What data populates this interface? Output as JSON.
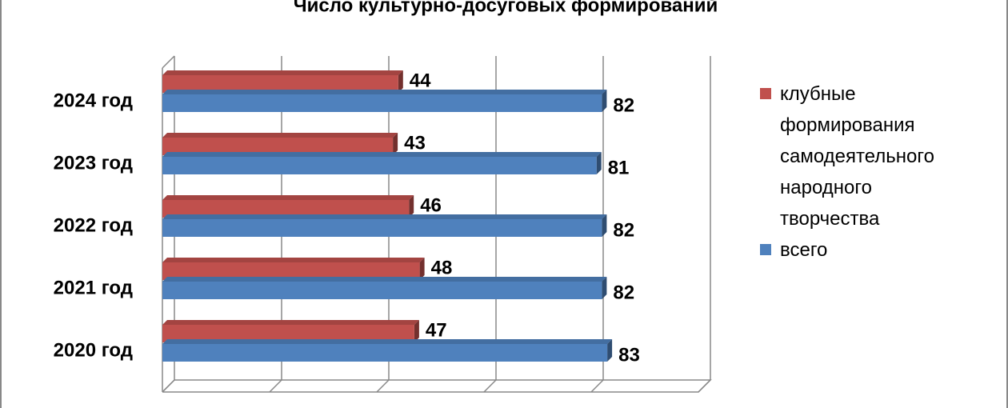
{
  "chart_data": {
    "type": "bar",
    "orientation": "horizontal",
    "title": "Число культурно-досуговых формирований",
    "categories": [
      "2024 год",
      "2023 год",
      "2022 год",
      "2021 год",
      "2020 год"
    ],
    "series": [
      {
        "name": "клубные формирования самодеятельного народного творчества",
        "color": "#c0504d",
        "values": [
          44,
          43,
          46,
          48,
          47
        ]
      },
      {
        "name": "всего",
        "color": "#4f81bd",
        "values": [
          82,
          81,
          82,
          82,
          83
        ]
      }
    ],
    "xlim": [
      0,
      100
    ],
    "xticks": [
      0,
      20,
      40,
      60,
      80,
      100
    ],
    "grid": true,
    "legend": "right"
  }
}
